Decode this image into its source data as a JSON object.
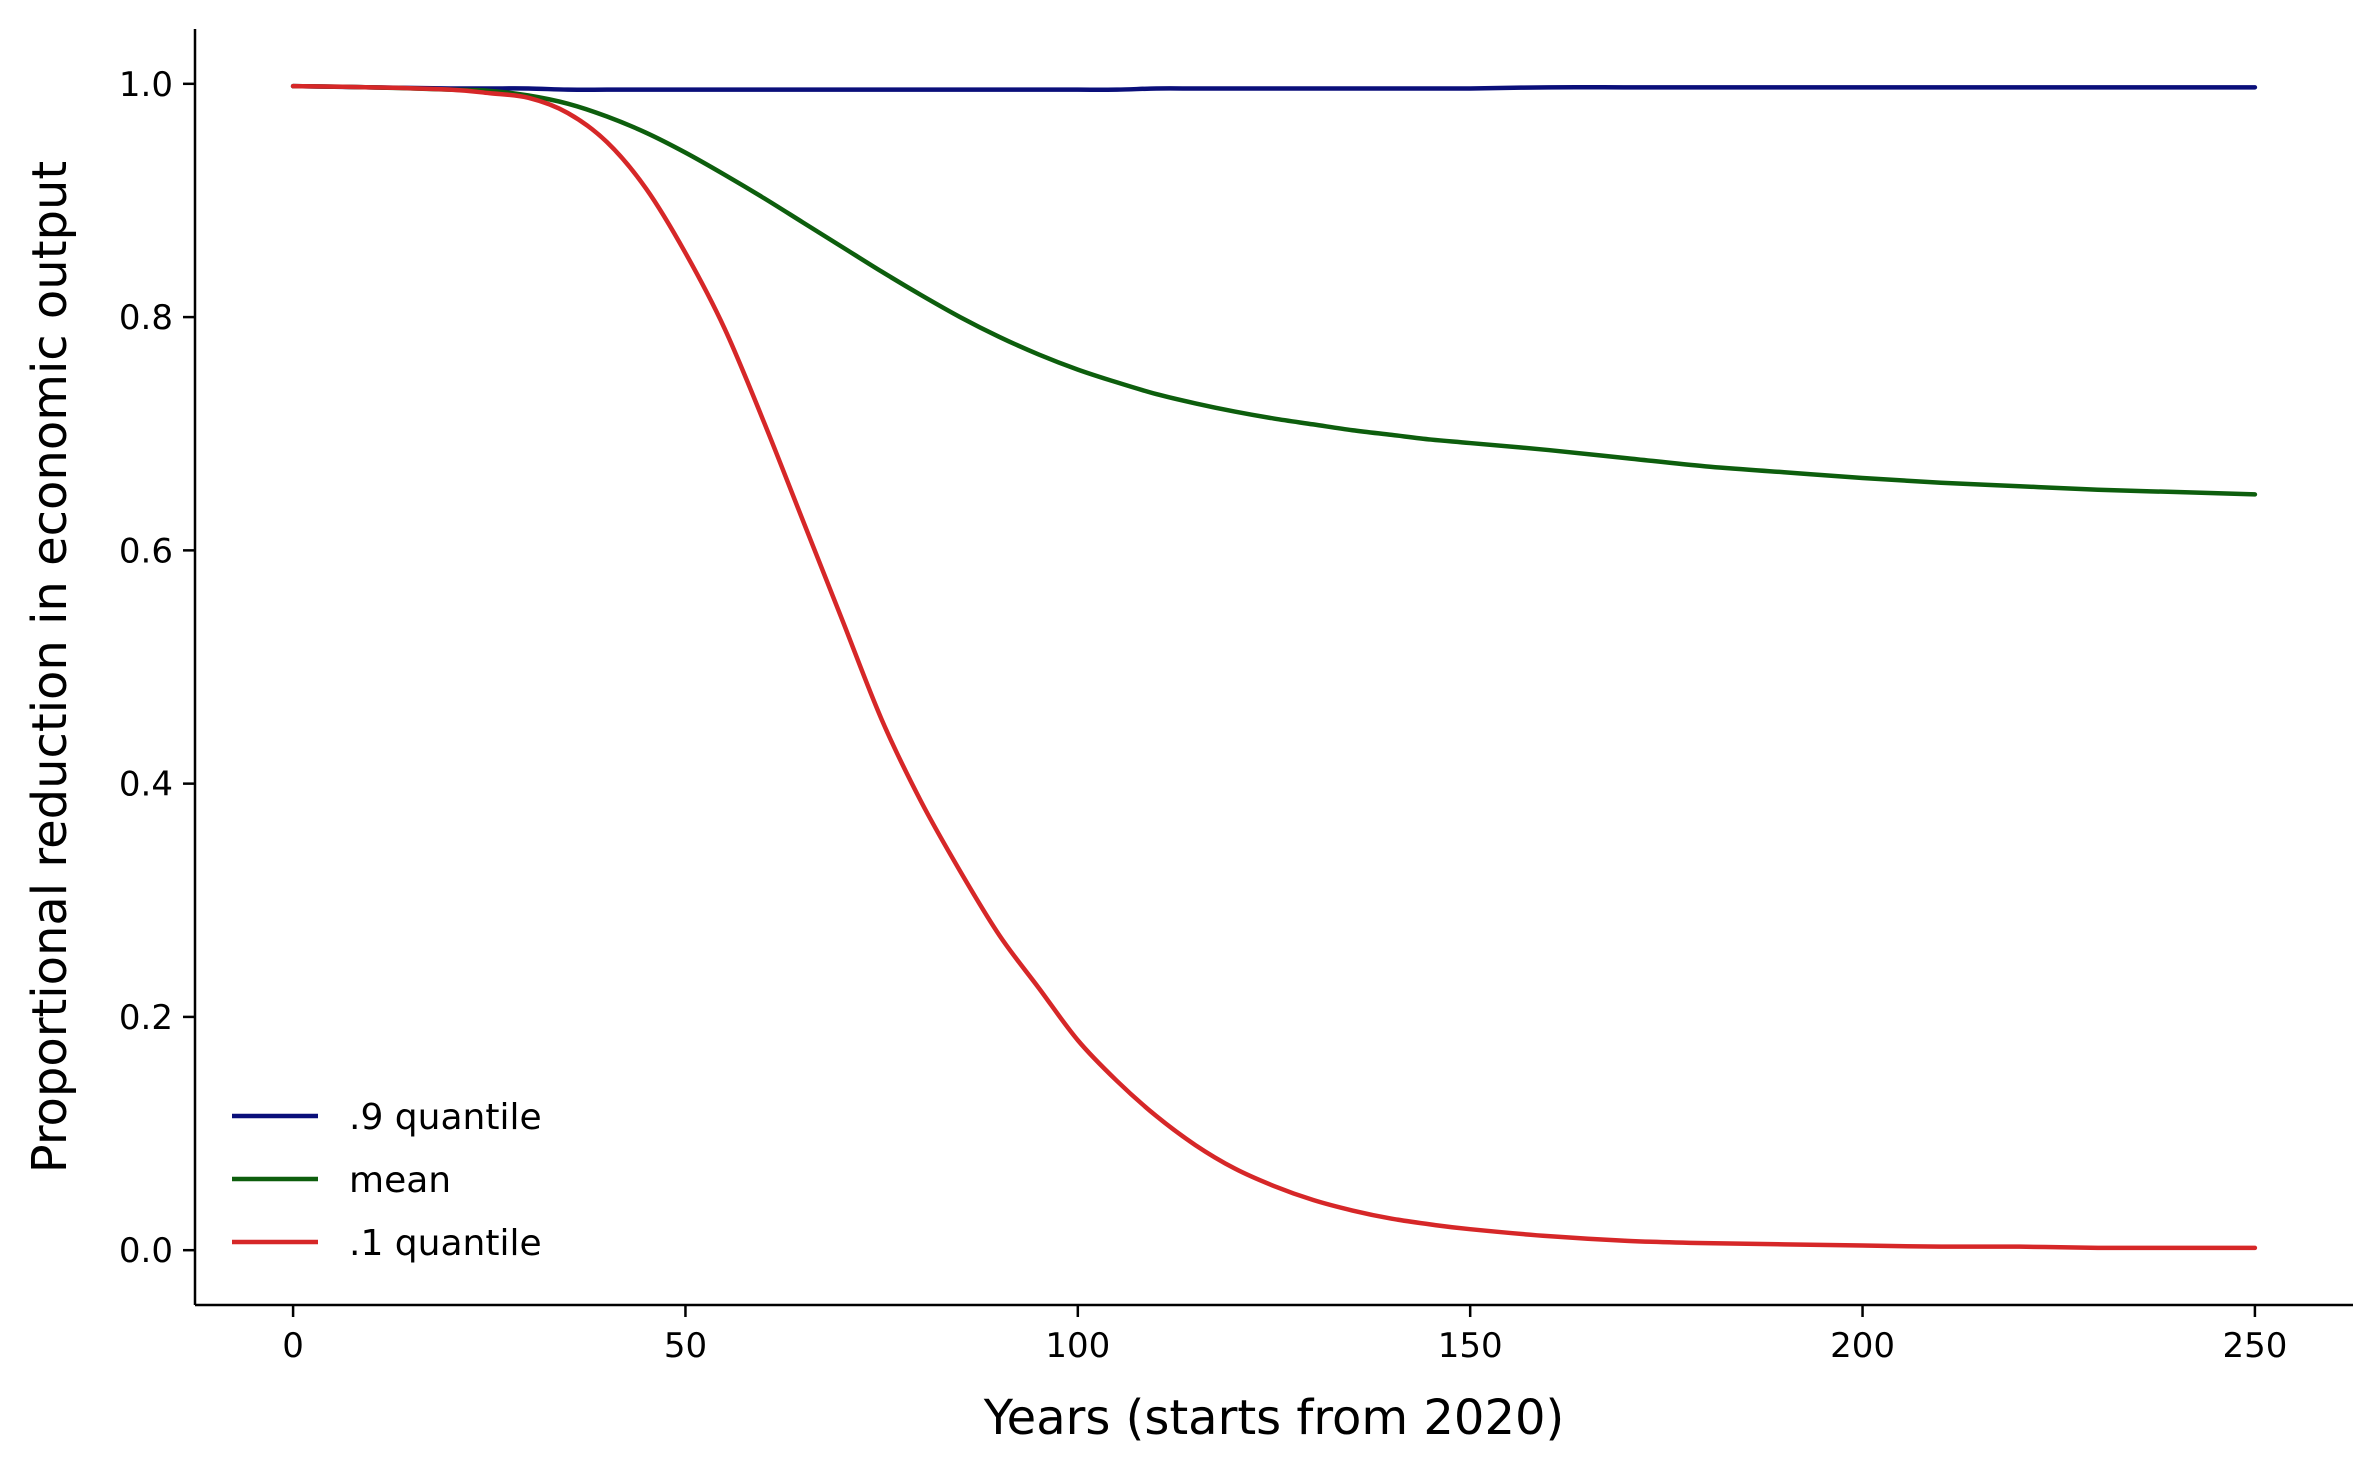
{
  "chart_data": {
    "type": "line",
    "title": "",
    "xlabel": "Years (starts from 2020)",
    "ylabel": "Proportional reduction in economic output",
    "xlim": [
      -12.5,
      262.5
    ],
    "ylim": [
      -0.047,
      1.047
    ],
    "xticks": [
      0,
      50,
      100,
      150,
      200,
      250
    ],
    "xtick_labels": [
      "0",
      "50",
      "100",
      "150",
      "200",
      "250"
    ],
    "yticks": [
      0.0,
      0.2,
      0.4,
      0.6,
      0.8,
      1.0
    ],
    "ytick_labels": [
      "0.0",
      "0.2",
      "0.4",
      "0.6",
      "0.8",
      "1.0"
    ],
    "grid": false,
    "legend_position": "lower-left",
    "x": [
      0,
      10,
      20,
      25,
      30,
      35,
      40,
      45,
      50,
      55,
      60,
      65,
      70,
      75,
      80,
      85,
      90,
      95,
      100,
      105,
      110,
      115,
      120,
      125,
      130,
      135,
      140,
      145,
      150,
      160,
      170,
      180,
      190,
      200,
      210,
      220,
      230,
      240,
      250
    ],
    "series": [
      {
        "name": ".9 quantile",
        "color": "#0a0f7a",
        "values": [
          0.998,
          0.997,
          0.996,
          0.996,
          0.996,
          0.995,
          0.995,
          0.995,
          0.995,
          0.995,
          0.995,
          0.995,
          0.995,
          0.995,
          0.995,
          0.995,
          0.995,
          0.995,
          0.995,
          0.995,
          0.996,
          0.996,
          0.996,
          0.996,
          0.996,
          0.996,
          0.996,
          0.996,
          0.996,
          0.997,
          0.997,
          0.997,
          0.997,
          0.997,
          0.997,
          0.997,
          0.997,
          0.997,
          0.997
        ]
      },
      {
        "name": "mean",
        "color": "#0d5e0d",
        "values": [
          0.998,
          0.997,
          0.995,
          0.994,
          0.99,
          0.983,
          0.972,
          0.958,
          0.941,
          0.922,
          0.902,
          0.881,
          0.86,
          0.839,
          0.819,
          0.8,
          0.783,
          0.768,
          0.755,
          0.744,
          0.734,
          0.726,
          0.719,
          0.713,
          0.708,
          0.703,
          0.699,
          0.695,
          0.692,
          0.686,
          0.679,
          0.672,
          0.667,
          0.662,
          0.658,
          0.655,
          0.652,
          0.65,
          0.648
        ]
      },
      {
        "name": ".1 quantile",
        "color": "#d62728",
        "values": [
          0.998,
          0.997,
          0.995,
          0.992,
          0.988,
          0.975,
          0.95,
          0.91,
          0.855,
          0.79,
          0.71,
          0.625,
          0.54,
          0.455,
          0.385,
          0.325,
          0.27,
          0.225,
          0.18,
          0.145,
          0.115,
          0.09,
          0.07,
          0.055,
          0.043,
          0.034,
          0.027,
          0.022,
          0.018,
          0.012,
          0.008,
          0.006,
          0.005,
          0.004,
          0.003,
          0.003,
          0.002,
          0.002,
          0.002
        ]
      }
    ]
  }
}
